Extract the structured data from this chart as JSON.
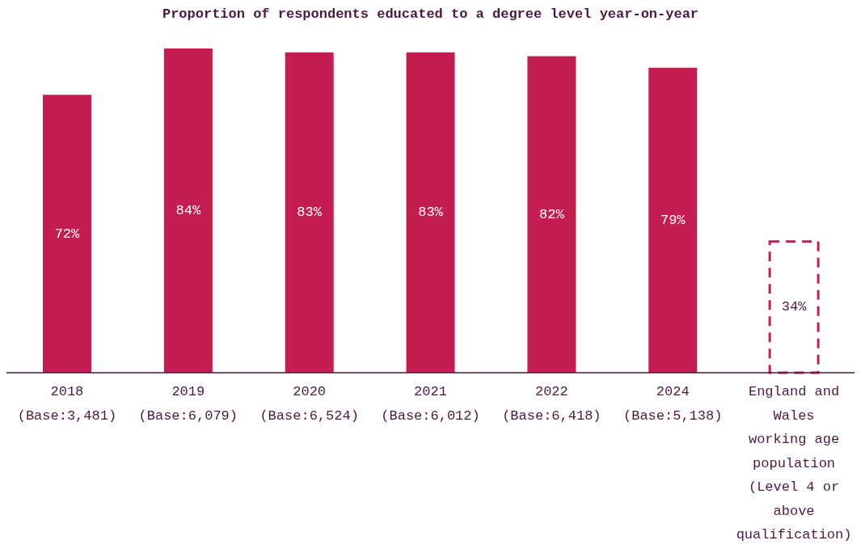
{
  "chart_data": {
    "type": "bar",
    "title": "Proportion of respondents educated to a degree level year-on-year",
    "categories": [
      "2018 (Base:3,481)",
      "2019 (Base:6,079)",
      "2020 (Base:6,524)",
      "2021 (Base:6,012)",
      "2022 (Base:6,418)",
      "2024 (Base:5,138)",
      "England and Wales working age population (Level 4 or above qualification)"
    ],
    "series": [
      {
        "color": "#c41e50",
        "values": [
          72,
          84,
          83,
          83,
          82,
          79,
          null
        ],
        "value_labels": [
          "72%",
          "84%",
          "83%",
          "83%",
          "82%",
          "79%",
          null
        ]
      },
      {
        "color": "#c41e50",
        "line_style": "dashed",
        "values": [
          null,
          null,
          null,
          null,
          null,
          null,
          34
        ],
        "value_labels": [
          null,
          null,
          null,
          null,
          null,
          null,
          "34%"
        ]
      }
    ],
    "legend": false,
    "grid": false
  }
}
